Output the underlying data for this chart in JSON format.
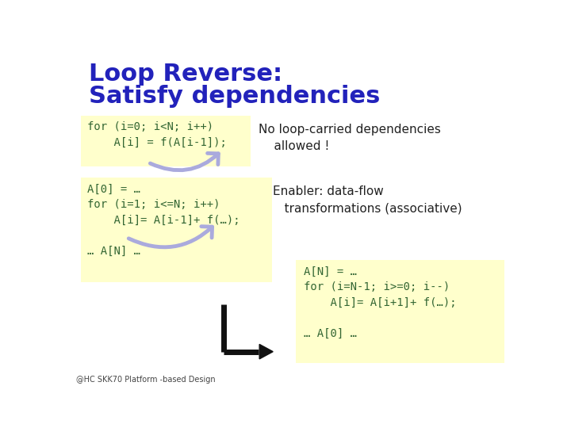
{
  "title_line1": "Loop Reverse:",
  "title_line2": "Satisfy dependencies",
  "title_color": "#2222bb",
  "bg_color": "#ffffff",
  "yellow_bg": "#ffffcc",
  "box1_text": "for (i=0; i<N; i++)\n    A[i] = f(A[i-1]);",
  "box2_text": "A[0] = …\nfor (i=1; i<=N; i++)\n    A[i]= A[i-1]+ f(…);\n\n… A[N] …",
  "box3_text": "A[N] = …\nfor (i=N-1; i>=0; i--)\n    A[i]= A[i+1]+ f(…);\n\n… A[0] …",
  "text1": "No loop-carried dependencies\n    allowed !",
  "text2": "Enabler: data-flow\n   transformations (associative)",
  "footer": "@HC SKK70 Platform -based Design",
  "code_color": "#336633",
  "text_color": "#222222",
  "arrow_color": "#aaaadd",
  "arrow2_color": "#111111",
  "title_fs": 22,
  "code_fs": 10,
  "text_fs": 11
}
